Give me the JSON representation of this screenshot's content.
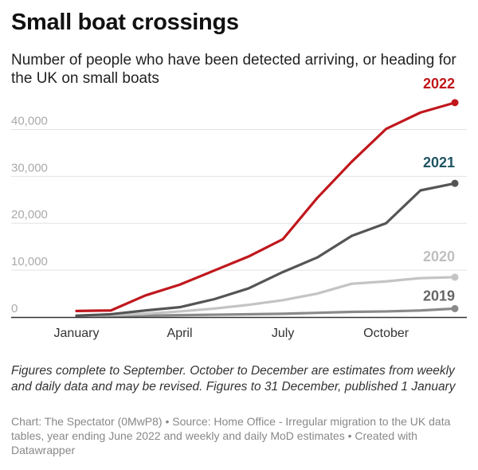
{
  "title": "Small boat crossings",
  "subtitle": "Number of people who have been detected arriving, or heading for the UK on small boats",
  "notes": "Figures complete to September. October to December are estimates from weekly and daily data and may be revised. Figures to 31 December, published 1 January",
  "credit": "Chart: The Spectator (0MwP8) • Source: Home Office - Irregular migration to the UK data tables, year ending June 2022 and weekly and daily MoD estimates • Created with Datawrapper",
  "chart_data": {
    "type": "line",
    "title": "Small boat crossings",
    "xlabel": "",
    "ylabel": "",
    "xlim": [
      0,
      11
    ],
    "ylim": [
      0,
      45000
    ],
    "yticks": [
      0,
      10000,
      20000,
      30000,
      40000
    ],
    "ytick_labels": [
      "0",
      "10,000",
      "20,000",
      "30,000",
      "40,000"
    ],
    "xticks": [
      0,
      3,
      6,
      9
    ],
    "xtick_labels": [
      "January",
      "April",
      "July",
      "October"
    ],
    "grid": true,
    "legend": "direct labels at line ends",
    "x": [
      0,
      1,
      2,
      3,
      4,
      5,
      6,
      7,
      8,
      9,
      10,
      11
    ],
    "series": [
      {
        "name": "2019",
        "color": "#8a8a8a",
        "values": [
          100,
          200,
          300,
          400,
          500,
          600,
          700,
          900,
          1100,
          1200,
          1400,
          1800
        ]
      },
      {
        "name": "2020",
        "color": "#c4c4c4",
        "values": [
          200,
          400,
          700,
          1200,
          1800,
          2600,
          3600,
          5000,
          7100,
          7600,
          8300,
          8500
        ]
      },
      {
        "name": "2021",
        "color": "#555555",
        "values": [
          300,
          600,
          1400,
          2100,
          3800,
          6100,
          9600,
          12700,
          17300,
          20000,
          27000,
          28500
        ]
      },
      {
        "name": "2022",
        "color": "#c0171c",
        "values": [
          1300,
          1400,
          4600,
          6900,
          9900,
          12900,
          16600,
          25400,
          33100,
          40100,
          43600,
          45700
        ]
      }
    ],
    "label_colors": {
      "2019": "#666666",
      "2020": "#c0c0c0",
      "2021": "#1f5462",
      "2022": "#c0171c"
    }
  }
}
